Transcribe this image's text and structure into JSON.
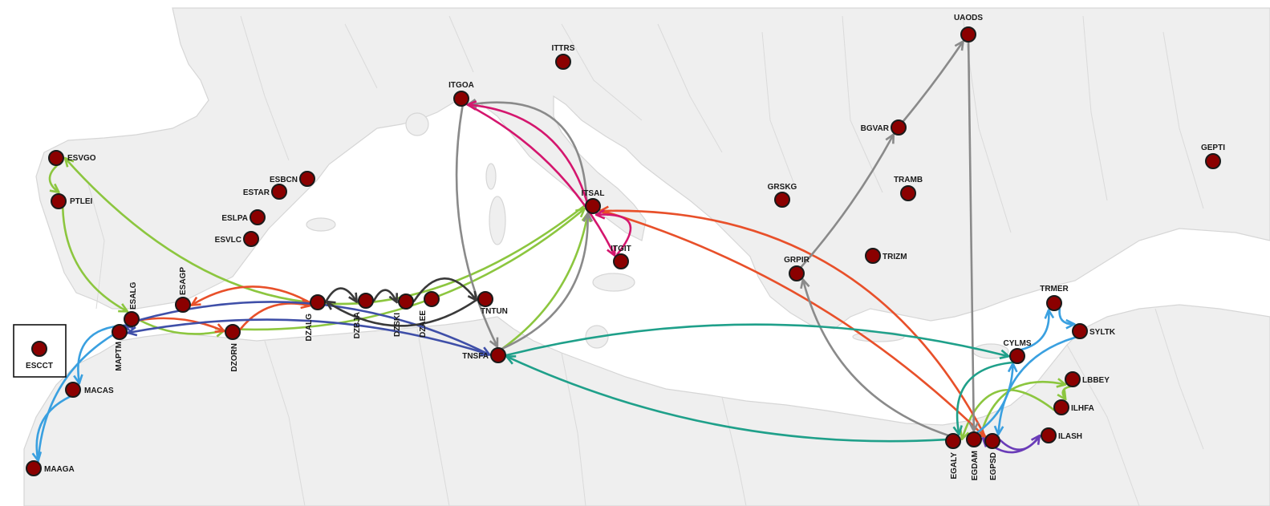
{
  "map": {
    "colors": {
      "background": "#ffffff",
      "land": "#efefef",
      "node_fill": "#8b0000",
      "node_stroke": "#1a1a1a",
      "route_green": "#8cc63f",
      "route_red": "#e8502a",
      "route_blue": "#3aa0e0",
      "route_navy": "#3f4fa8",
      "route_grey": "#8a8a8a",
      "route_black": "#3a3a3a",
      "route_magenta": "#d4166e",
      "route_teal": "#1fa08a",
      "route_purple": "#6a3cb8"
    },
    "nodes": [
      {
        "code": "UAODS"
      },
      {
        "code": "ITTRS"
      },
      {
        "code": "ITGOA"
      },
      {
        "code": "BGVAR"
      },
      {
        "code": "GEPTI"
      },
      {
        "code": "ESVGO"
      },
      {
        "code": "ESBCN"
      },
      {
        "code": "ESTAR"
      },
      {
        "code": "GRSKG"
      },
      {
        "code": "TRAMB"
      },
      {
        "code": "ITSAL"
      },
      {
        "code": "PTLEI"
      },
      {
        "code": "ESLPA"
      },
      {
        "code": "ESVLC"
      },
      {
        "code": "ITGIT"
      },
      {
        "code": "TRIZM"
      },
      {
        "code": "GRPIR"
      },
      {
        "code": "ESAGP"
      },
      {
        "code": "ESALG"
      },
      {
        "code": "MAPTM"
      },
      {
        "code": "DZALG"
      },
      {
        "code": "DZBJA"
      },
      {
        "code": "DZSKI"
      },
      {
        "code": "DZAEE"
      },
      {
        "code": "TNTUN"
      },
      {
        "code": "TRMER"
      },
      {
        "code": "SYLTK"
      },
      {
        "code": "DZORN"
      },
      {
        "code": "ESCCT"
      },
      {
        "code": "TNSFA"
      },
      {
        "code": "CYLMS"
      },
      {
        "code": "LBBEY"
      },
      {
        "code": "MACAS"
      },
      {
        "code": "ILHFA"
      },
      {
        "code": "ILASH"
      },
      {
        "code": "EGALY"
      },
      {
        "code": "EGDAM"
      },
      {
        "code": "EGPSD"
      },
      {
        "code": "MAAGA"
      }
    ],
    "routes": [
      {
        "from": "ITSAL",
        "to": "ESVGO",
        "color": "route_green"
      },
      {
        "from": "ESVGO",
        "to": "PTLEI",
        "color": "route_green"
      },
      {
        "from": "PTLEI",
        "to": "ESALG",
        "color": "route_green"
      },
      {
        "from": "ESALG",
        "to": "DZORN",
        "color": "route_green"
      },
      {
        "from": "DZORN",
        "to": "ITSAL",
        "color": "route_green"
      },
      {
        "from": "TNSFA",
        "to": "ITSAL",
        "color": "route_green"
      },
      {
        "from": "EGDAM",
        "to": "LBBEY",
        "color": "route_green"
      },
      {
        "from": "LBBEY",
        "to": "ILHFA",
        "color": "route_green"
      },
      {
        "from": "ILHFA",
        "to": "EGALY",
        "color": "route_green"
      },
      {
        "from": "ESALG",
        "to": "DZORN",
        "color": "route_red"
      },
      {
        "from": "DZORN",
        "to": "DZALG",
        "color": "route_red"
      },
      {
        "from": "DZALG",
        "to": "ESAGP",
        "color": "route_red"
      },
      {
        "from": "EGPSD",
        "to": "ITSAL",
        "color": "route_red"
      },
      {
        "from": "ITSAL",
        "to": "EGPSD",
        "color": "route_red"
      },
      {
        "from": "MAAGA",
        "to": "ESALG",
        "color": "route_blue"
      },
      {
        "from": "ESALG",
        "to": "MACAS",
        "color": "route_blue"
      },
      {
        "from": "MACAS",
        "to": "MAAGA",
        "color": "route_blue"
      },
      {
        "from": "EGDAM",
        "to": "CYLMS",
        "color": "route_blue"
      },
      {
        "from": "CYLMS",
        "to": "TRMER",
        "color": "route_blue"
      },
      {
        "from": "TRMER",
        "to": "SYLTK",
        "color": "route_blue"
      },
      {
        "from": "SYLTK",
        "to": "EGPSD",
        "color": "route_blue"
      },
      {
        "from": "ESALG",
        "to": "TNSFA",
        "color": "route_navy"
      },
      {
        "from": "TNSFA",
        "to": "MAPTM",
        "color": "route_navy"
      },
      {
        "from": "MAPTM",
        "to": "ESALG",
        "color": "route_navy"
      },
      {
        "from": "TNSFA",
        "to": "ITSAL",
        "color": "route_grey"
      },
      {
        "from": "ITSAL",
        "to": "ITGOA",
        "color": "route_grey"
      },
      {
        "from": "ITGOA",
        "to": "TNSFA",
        "color": "route_grey"
      },
      {
        "from": "GRPIR",
        "to": "BGVAR",
        "color": "route_grey"
      },
      {
        "from": "BGVAR",
        "to": "UAODS",
        "color": "route_grey"
      },
      {
        "from": "UAODS",
        "to": "EGDAM",
        "color": "route_grey"
      },
      {
        "from": "EGALY",
        "to": "GRPIR",
        "color": "route_grey"
      },
      {
        "from": "TNTUN",
        "to": "DZALG",
        "color": "route_black"
      },
      {
        "from": "DZALG",
        "to": "DZBJA",
        "color": "route_black"
      },
      {
        "from": "DZBJA",
        "to": "DZSKI",
        "color": "route_black"
      },
      {
        "from": "DZSKI",
        "to": "TNTUN",
        "color": "route_black"
      },
      {
        "from": "ITSAL",
        "to": "ITGOA",
        "color": "route_magenta"
      },
      {
        "from": "ITGOA",
        "to": "ITGIT",
        "color": "route_magenta"
      },
      {
        "from": "ITGIT",
        "to": "ITSAL",
        "color": "route_magenta"
      },
      {
        "from": "TNSFA",
        "to": "CYLMS",
        "color": "route_teal"
      },
      {
        "from": "CYLMS",
        "to": "EGALY",
        "color": "route_teal"
      },
      {
        "from": "EGALY",
        "to": "TNSFA",
        "color": "route_teal"
      },
      {
        "from": "EGPSD",
        "to": "ILASH",
        "color": "route_purple"
      },
      {
        "from": "ILASH",
        "to": "EGDAM",
        "color": "route_purple"
      }
    ]
  }
}
